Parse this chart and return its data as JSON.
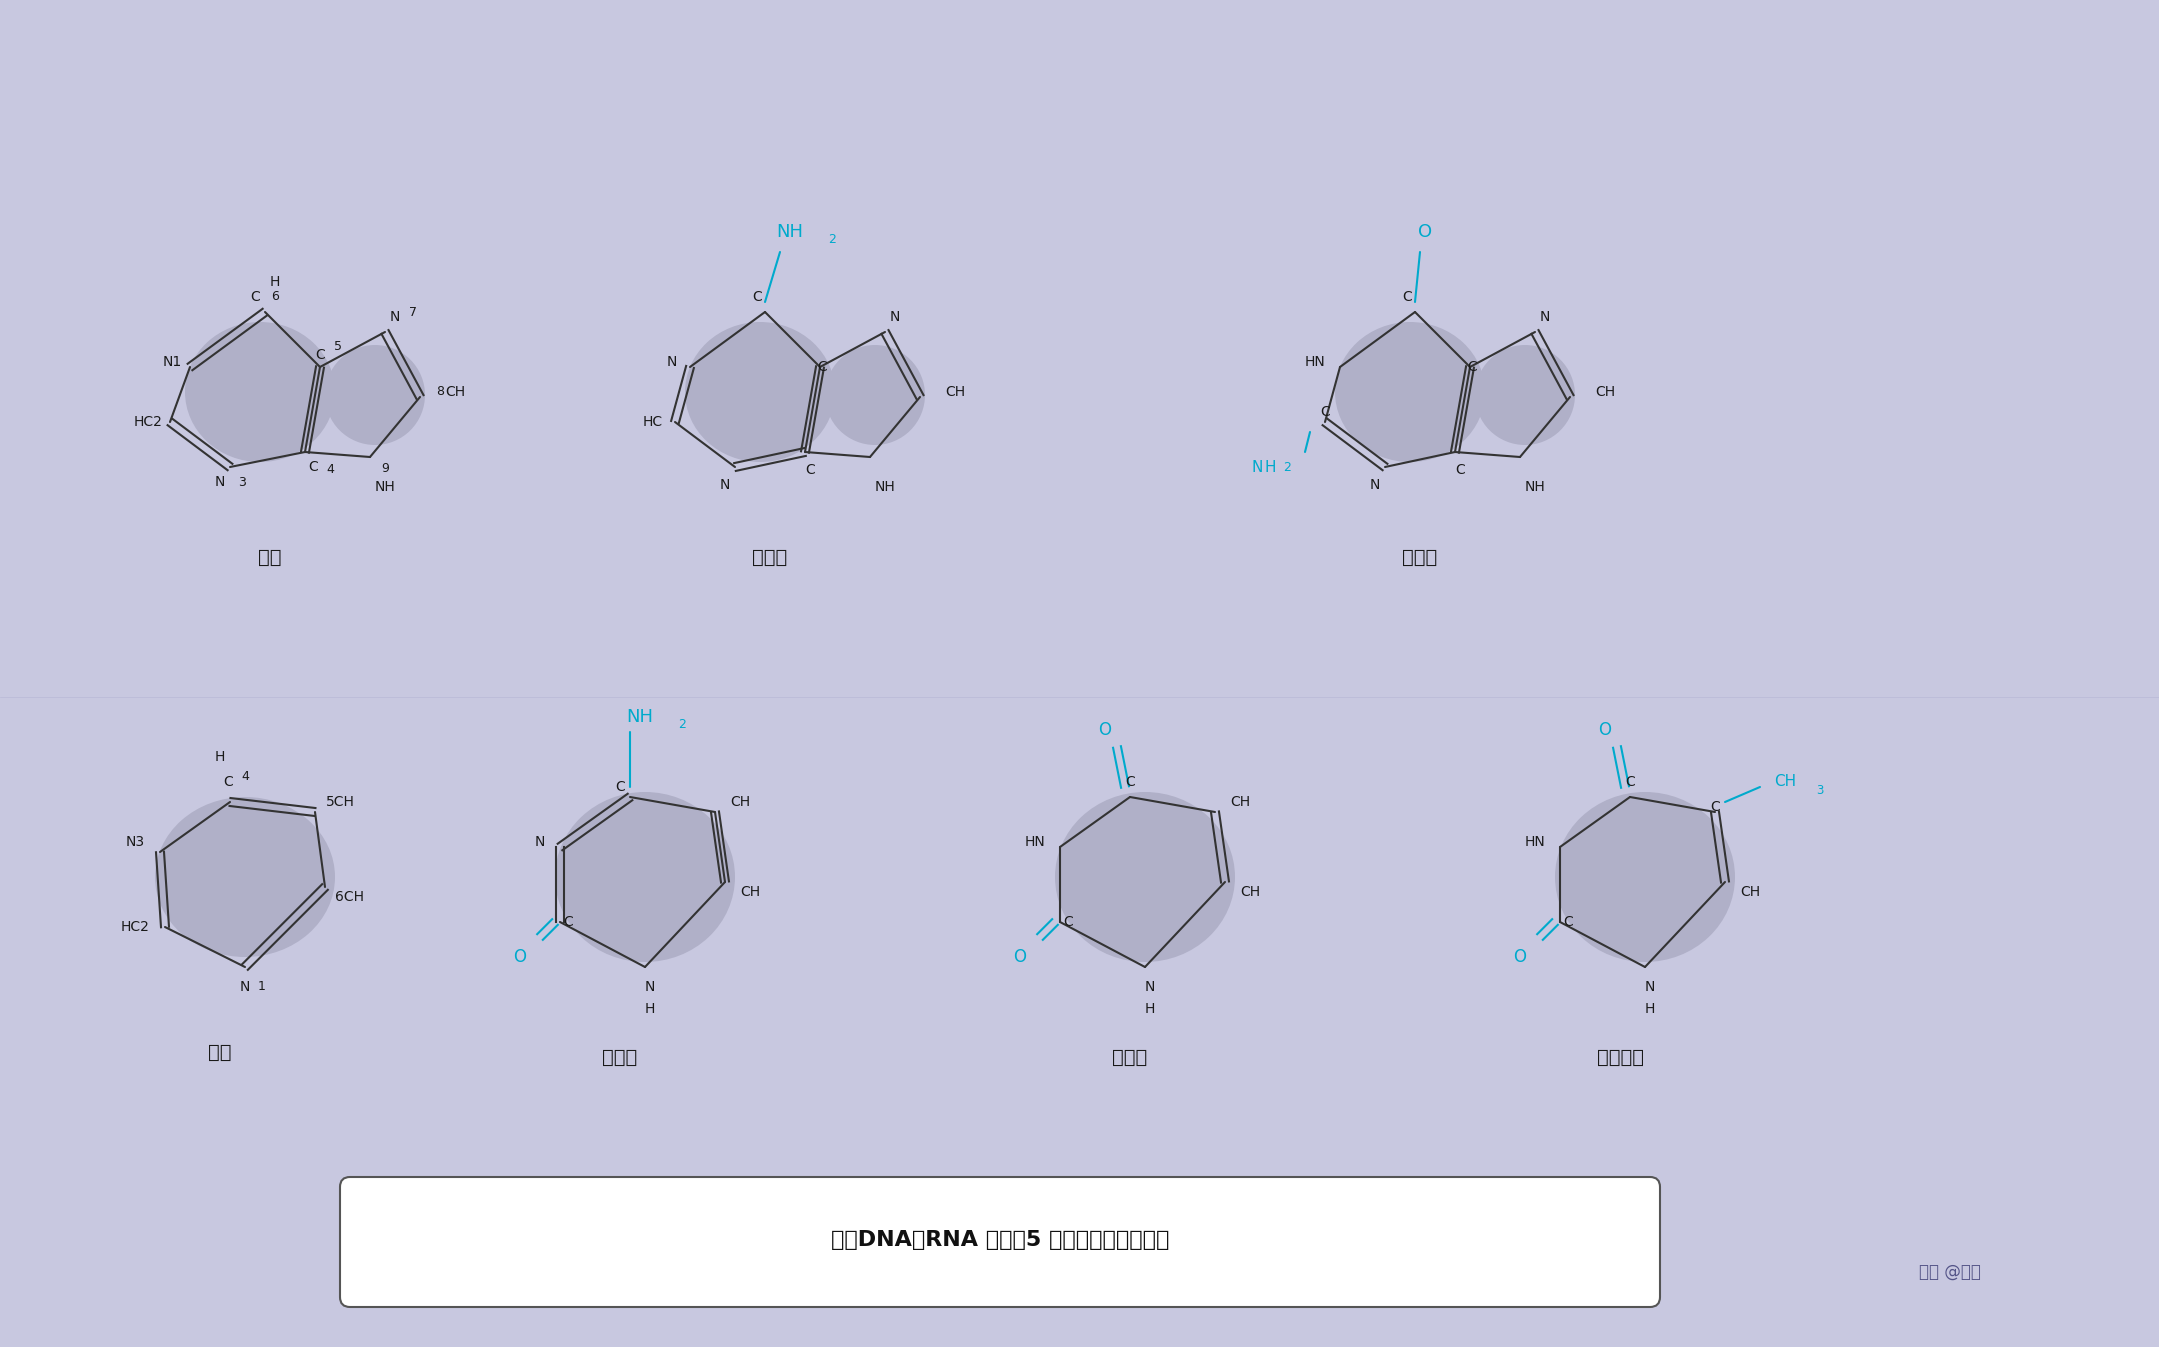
{
  "bg_color": "#c8c8e0",
  "text_color": "#1a1a1a",
  "cyan_color": "#00aacc",
  "ring_color": "#b0b0c8",
  "title": "组成DNA和RNA 分子的5 种含氮碱基的结构式",
  "watermark": "知乎 @志成",
  "labels": {
    "purine": "嘌呤",
    "adenine": "腺嘌呤",
    "guanine": "鸟嘌呤",
    "pyrimidine": "嘧啶",
    "cytosine": "胞嘧啶",
    "uracil": "尿嘧啶",
    "thymine": "胸腺嘧啶"
  }
}
